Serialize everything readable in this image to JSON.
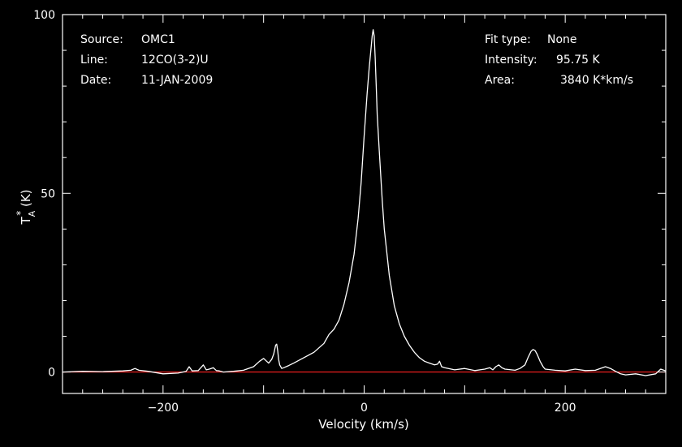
{
  "info": {
    "source_label": "Source:",
    "source_value": "OMC1",
    "line_label": "Line:",
    "line_value": "12CO(3-2)U",
    "date_label": "Date:",
    "date_value": "11-JAN-2009",
    "fit_label": "Fit type:",
    "fit_value": "None",
    "intensity_label": "Intensity:",
    "intensity_value": "95.75 K",
    "area_label": "Area:",
    "area_value": "3840 K*km/s"
  },
  "colors": {
    "background": "#000000",
    "axes": "#ffffff",
    "spectrum": "#ffffff",
    "baseline": "#ff2020"
  },
  "chart_data": {
    "type": "line",
    "title": "",
    "xlabel": "Velocity (km/s)",
    "ylabel_main": "T",
    "ylabel_sup": "*",
    "ylabel_sub": "A",
    "ylabel_unit": " (K)",
    "xlim": [
      -300,
      300
    ],
    "ylim": [
      -6,
      100
    ],
    "xticks": [
      -200,
      0,
      200
    ],
    "xtick_labels": [
      "−200",
      "0",
      "200"
    ],
    "yticks": [
      0,
      50,
      100
    ],
    "ytick_labels": [
      "0",
      "50",
      "100"
    ],
    "grid": false,
    "baseline": {
      "y": 0
    },
    "series": [
      {
        "x": [
          -300,
          -280,
          -260,
          -240,
          -232,
          -228,
          -224,
          -215,
          -200,
          -185,
          -177,
          -174,
          -171,
          -165,
          -160,
          -157,
          -154,
          -150,
          -147,
          -144,
          -140,
          -130,
          -120,
          -110,
          -104,
          -100,
          -97,
          -95,
          -92,
          -90,
          -88,
          -87,
          -86,
          -85,
          -84,
          -82,
          -80,
          -75,
          -70,
          -60,
          -50,
          -40,
          -35,
          -30,
          -25,
          -20,
          -15,
          -10,
          -6,
          -3,
          0,
          3,
          5,
          7,
          8,
          9,
          10,
          11,
          12,
          13,
          15,
          18,
          20,
          25,
          30,
          35,
          40,
          45,
          50,
          55,
          60,
          65,
          70,
          73,
          75,
          77,
          80,
          90,
          100,
          110,
          120,
          125,
          128,
          131,
          134,
          137,
          140,
          150,
          155,
          160,
          163,
          166,
          168,
          170,
          172,
          175,
          178,
          180,
          190,
          200,
          210,
          220,
          230,
          240,
          245,
          250,
          255,
          260,
          270,
          280,
          290,
          295,
          300
        ],
        "y": [
          0.0,
          0.2,
          0.1,
          0.3,
          0.5,
          1.0,
          0.5,
          0.2,
          -0.5,
          -0.3,
          0.2,
          1.5,
          0.3,
          0.4,
          2.0,
          0.6,
          0.8,
          1.2,
          0.4,
          0.3,
          0.0,
          0.2,
          0.5,
          1.5,
          3.0,
          3.8,
          3.0,
          2.5,
          3.5,
          5.0,
          7.5,
          7.8,
          6.0,
          3.5,
          2.0,
          1.0,
          1.2,
          1.8,
          2.5,
          4.0,
          5.5,
          8.0,
          10.5,
          12.0,
          14.5,
          19.0,
          25.0,
          33.0,
          43.0,
          53.0,
          66.0,
          78.0,
          85.0,
          91.0,
          94.0,
          95.75,
          94.0,
          88.0,
          80.0,
          72.0,
          62.0,
          48.0,
          40.0,
          27.0,
          18.5,
          13.5,
          10.0,
          7.5,
          5.5,
          4.0,
          3.0,
          2.5,
          2.0,
          2.2,
          3.0,
          1.5,
          1.2,
          0.6,
          1.0,
          0.4,
          0.8,
          1.2,
          0.6,
          1.5,
          2.0,
          1.2,
          0.8,
          0.5,
          1.0,
          2.0,
          4.0,
          5.8,
          6.3,
          6.0,
          5.0,
          3.0,
          1.5,
          0.8,
          0.5,
          0.3,
          0.8,
          0.4,
          0.5,
          1.5,
          1.0,
          0.2,
          -0.5,
          -0.8,
          -0.5,
          -1.0,
          -0.5,
          0.8,
          0.3
        ]
      }
    ]
  }
}
